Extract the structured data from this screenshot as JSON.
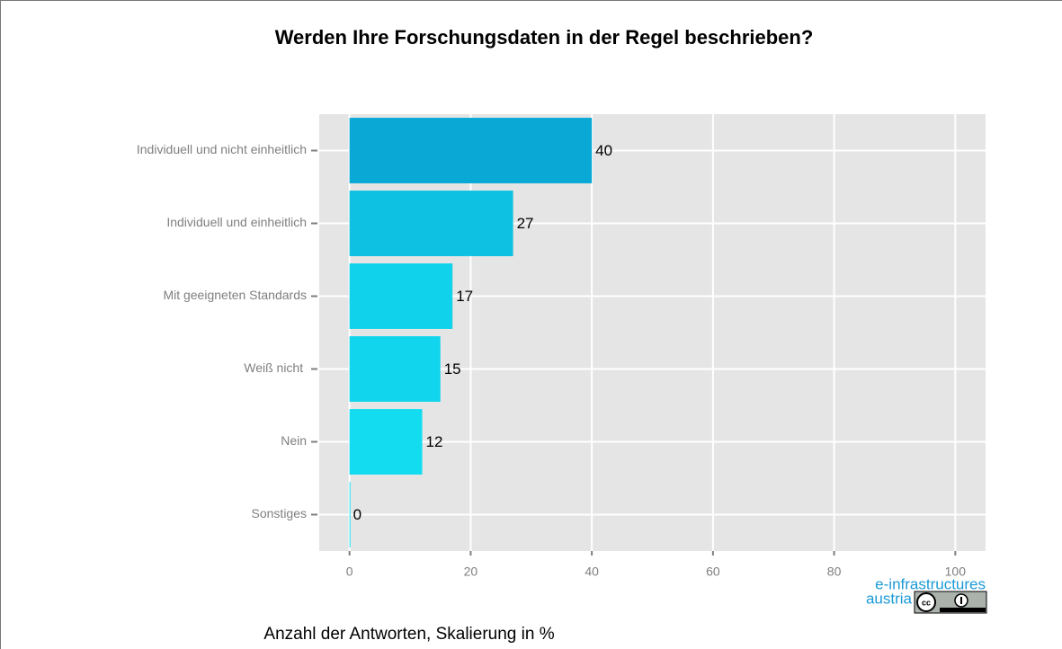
{
  "chart_data": {
    "type": "barh",
    "title": "Werden Ihre Forschungsdaten in der Regel beschrieben?",
    "x_label": "Anzahl der Antworten, Skalierung in %",
    "categories": [
      "Individuell und nicht einheitlich",
      "Individuell und einheitlich",
      "Mit geeigneten Standards",
      "Weiß nicht ",
      "Nein",
      "Sonstiges"
    ],
    "values": [
      40,
      27,
      17,
      15,
      12,
      0
    ],
    "colors": [
      "#0aa8d5",
      "#0ec0e1",
      "#10d2eb",
      "#11d5ed",
      "#13dcf0",
      "#17e3f3"
    ],
    "xlim": [
      -5,
      105
    ],
    "xticks": [
      0,
      20,
      40,
      60,
      80,
      100
    ],
    "grid": true,
    "logo": {
      "line1": "e-infrastructures",
      "line2": "austria"
    }
  }
}
